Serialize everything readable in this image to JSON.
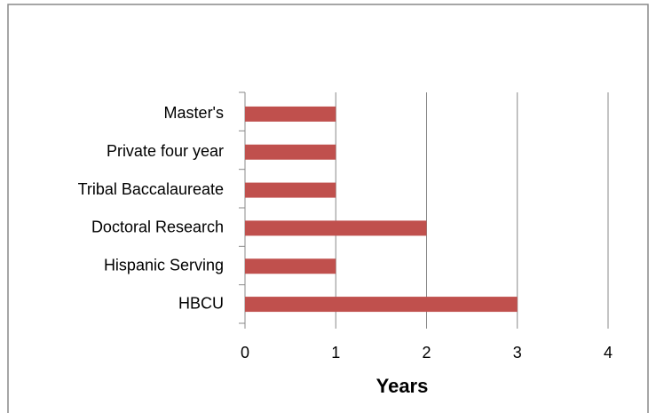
{
  "chart_data": {
    "type": "bar",
    "orientation": "horizontal",
    "categories": [
      "Master's",
      "Private four year",
      "Tribal Baccalaureate",
      "Doctoral Research",
      "Hispanic Serving",
      "HBCU"
    ],
    "values": [
      1,
      1,
      1,
      2,
      1,
      3
    ],
    "color": "#c0504d",
    "x_label": "Years",
    "xlim": [
      0,
      4
    ],
    "xticks": [
      0,
      1,
      2,
      3,
      4
    ],
    "grid": true
  }
}
